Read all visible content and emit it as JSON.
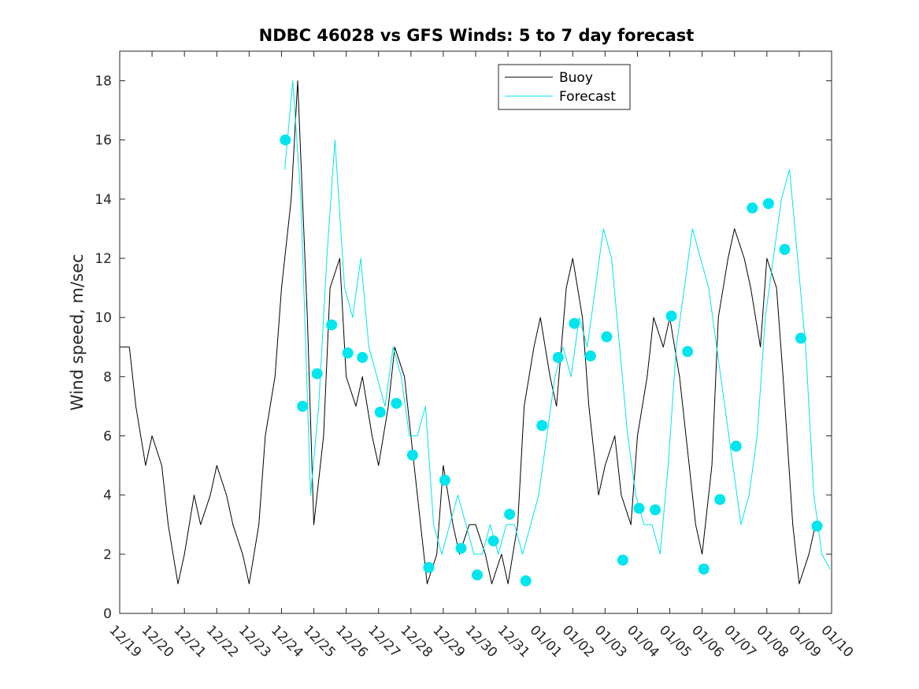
{
  "chart_data": {
    "type": "line",
    "title": "NDBC 46028 vs GFS Winds: 5 to 7 day forecast",
    "xlabel": "",
    "ylabel": "Wind speed, m/sec",
    "xlim": [
      0,
      22
    ],
    "ylim": [
      0,
      19
    ],
    "yticks": [
      0,
      2,
      4,
      6,
      8,
      10,
      12,
      14,
      16,
      18
    ],
    "xtick_labels": [
      "12/19",
      "12/20",
      "12/21",
      "12/22",
      "12/23",
      "12/24",
      "12/25",
      "12/26",
      "12/27",
      "12/28",
      "12/29",
      "12/30",
      "12/31",
      "01/01",
      "01/02",
      "01/03",
      "01/04",
      "01/05",
      "01/06",
      "01/07",
      "01/08",
      "01/09",
      "01/10"
    ],
    "legend": {
      "position": "top-right",
      "entries": [
        "Buoy",
        "Forecast"
      ]
    },
    "colors": {
      "buoy": "#000000",
      "forecast": "#00e5ee",
      "axes": "#262626"
    },
    "series": [
      {
        "name": "Buoy",
        "x": [
          0,
          0.3,
          0.5,
          0.8,
          1.0,
          1.3,
          1.5,
          1.8,
          2.0,
          2.3,
          2.5,
          2.8,
          3.0,
          3.3,
          3.5,
          3.8,
          4.0,
          4.3,
          4.5,
          4.8,
          5.0,
          5.3,
          5.5,
          5.8,
          6.0,
          6.3,
          6.5,
          6.8,
          7.0,
          7.3,
          7.5,
          7.8,
          8.0,
          8.3,
          8.5,
          8.8,
          9.0,
          9.3,
          9.5,
          9.8,
          10.0,
          10.3,
          10.5,
          10.8,
          11.0,
          11.3,
          11.5,
          11.8,
          12.0,
          12.3,
          12.5,
          12.8,
          13.0,
          13.3,
          13.5,
          13.8,
          14.0,
          14.3,
          14.5,
          14.8,
          15.0,
          15.3,
          15.5,
          15.8,
          16.0,
          16.3,
          16.5,
          16.8,
          17.0,
          17.3,
          17.5,
          17.8,
          18.0,
          18.3,
          18.5,
          18.8,
          19.0,
          19.3,
          19.5,
          19.8,
          20.0,
          20.3,
          20.5,
          20.8,
          21.0,
          21.3,
          21.5
        ],
        "values": [
          9,
          9,
          7,
          5,
          6,
          5,
          3,
          1,
          2,
          4,
          3,
          4,
          5,
          4,
          3,
          2,
          1,
          3,
          6,
          8,
          11,
          14,
          18,
          10,
          3,
          6,
          11,
          12,
          8,
          7,
          8,
          6,
          5,
          7,
          9,
          8,
          6,
          3,
          1,
          2,
          5,
          3,
          2,
          3,
          3,
          2,
          1,
          2,
          1,
          3,
          7,
          9,
          10,
          8,
          7,
          11,
          12,
          10,
          7,
          4,
          5,
          6,
          4,
          3,
          6,
          8,
          10,
          9,
          10,
          8,
          6,
          3,
          2,
          5,
          10,
          12,
          13,
          12,
          11,
          9,
          12,
          11,
          8,
          3,
          1,
          2,
          3
        ]
      },
      {
        "name": "Forecast",
        "x": [
          5.1,
          5.35,
          5.6,
          5.9,
          6.15,
          6.4,
          6.65,
          6.95,
          7.2,
          7.45,
          7.7,
          7.95,
          8.2,
          8.45,
          8.7,
          8.95,
          9.2,
          9.45,
          9.7,
          9.95,
          10.2,
          10.45,
          10.7,
          10.95,
          11.2,
          11.45,
          11.7,
          11.95,
          12.2,
          12.45,
          12.7,
          12.95,
          13.2,
          13.45,
          13.7,
          13.95,
          14.2,
          14.45,
          14.7,
          14.95,
          15.2,
          15.45,
          15.7,
          15.95,
          16.2,
          16.45,
          16.7,
          16.95,
          17.2,
          17.45,
          17.7,
          17.95,
          18.2,
          18.45,
          18.7,
          18.95,
          19.2,
          19.45,
          19.7,
          19.95,
          20.2,
          20.45,
          20.7,
          20.95,
          21.2,
          21.45,
          21.7,
          21.95
        ],
        "values": [
          15,
          18,
          14,
          4,
          7,
          12,
          16,
          11,
          10,
          12,
          9,
          8,
          7,
          9,
          8,
          6,
          6,
          7,
          3,
          2,
          3,
          4,
          3,
          2,
          2,
          3,
          2,
          3,
          3,
          2,
          3,
          4,
          6,
          8,
          9,
          8,
          10,
          9,
          11,
          13,
          12,
          9,
          6,
          4,
          3,
          3,
          2,
          5,
          9,
          11,
          13,
          12,
          11,
          9,
          7,
          5,
          3,
          4,
          6,
          10,
          12,
          14,
          15,
          12,
          9,
          4,
          2,
          1.5
        ]
      }
    ],
    "forecast_points": {
      "x": [
        5.12,
        5.65,
        6.1,
        6.55,
        7.05,
        7.5,
        8.05,
        8.55,
        9.05,
        9.55,
        10.05,
        10.55,
        11.05,
        11.55,
        12.05,
        12.55,
        13.05,
        13.55,
        14.05,
        14.55,
        15.05,
        15.55,
        16.05,
        16.55,
        17.05,
        17.55,
        18.05,
        18.55,
        19.05,
        19.55,
        20.05,
        20.55,
        21.05,
        21.55
      ],
      "values": [
        16,
        7,
        8.1,
        9.75,
        8.8,
        8.65,
        6.8,
        7.1,
        5.35,
        1.55,
        4.5,
        2.2,
        1.3,
        2.45,
        3.35,
        1.1,
        6.35,
        8.65,
        9.8,
        8.7,
        9.35,
        1.8,
        3.55,
        3.5,
        10.05,
        8.85,
        1.5,
        3.85,
        5.65,
        13.7,
        13.85,
        12.3,
        9.3,
        2.95
      ]
    }
  }
}
